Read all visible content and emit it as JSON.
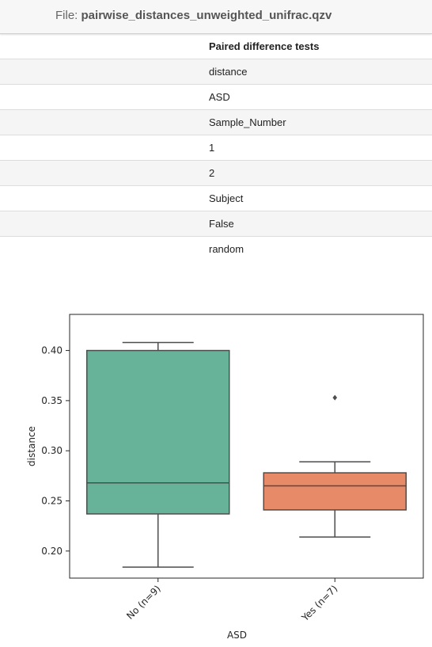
{
  "file": {
    "prefix": "File:",
    "name": "pairwise_distances_unweighted_unifrac.qzv"
  },
  "table": {
    "header": "Paired difference tests",
    "rows": [
      "distance",
      "ASD",
      "Sample_Number",
      "1",
      "2",
      "Subject",
      "False",
      "random"
    ]
  },
  "chart_data": {
    "type": "boxplot",
    "xlabel": "ASD",
    "ylabel": "distance",
    "categories": [
      "No (n=9)",
      "Yes (n=7)"
    ],
    "ylim": [
      0.173,
      0.436
    ],
    "yticks": [
      "0.20",
      "0.25",
      "0.30",
      "0.35",
      "0.40"
    ],
    "grid": false,
    "boxes": [
      {
        "label": "No (n=9)",
        "whisker_low": 0.184,
        "q1": 0.237,
        "median": 0.268,
        "q3": 0.4,
        "whisker_high": 0.408,
        "outliers": [],
        "color": "#66b39a"
      },
      {
        "label": "Yes (n=7)",
        "whisker_low": 0.214,
        "q1": 0.241,
        "median": 0.265,
        "q3": 0.278,
        "whisker_high": 0.289,
        "outliers": [
          0.353
        ],
        "color": "#e68a68"
      }
    ]
  }
}
